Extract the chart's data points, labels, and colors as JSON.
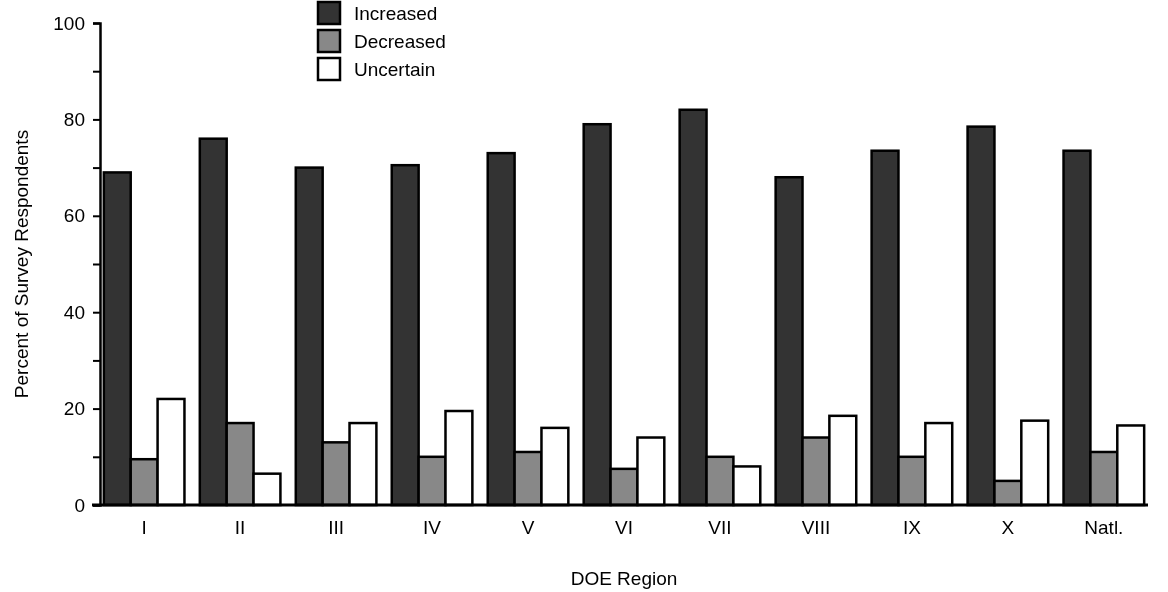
{
  "chart_data": {
    "type": "bar",
    "xlabel": "DOE Region",
    "ylabel": "Percent of Survey Respondents",
    "categories": [
      "I",
      "II",
      "III",
      "IV",
      "V",
      "VI",
      "VII",
      "VIII",
      "IX",
      "X",
      "Natl."
    ],
    "series": [
      {
        "name": "Increased",
        "color": "#333333",
        "values": [
          69,
          76,
          70,
          70.5,
          73,
          79,
          82,
          68,
          73.5,
          78.5,
          73.5
        ]
      },
      {
        "name": "Decreased",
        "color": "#888888",
        "values": [
          9.5,
          17,
          13,
          10,
          11,
          7.5,
          10,
          14,
          10,
          5,
          11
        ]
      },
      {
        "name": "Uncertain",
        "color": "#ffffff",
        "values": [
          22,
          6.5,
          17,
          19.5,
          16,
          14,
          8,
          18.5,
          17,
          17.5,
          16.5
        ]
      }
    ],
    "ylim": [
      0,
      100
    ],
    "yticks": [
      0,
      {
        "value": 10,
        "label": null
      },
      20,
      {
        "value": 30,
        "label": null
      },
      40,
      {
        "value": 50,
        "label": null
      },
      60,
      {
        "value": 70,
        "label": null
      },
      80,
      {
        "value": 90,
        "label": null
      },
      100
    ],
    "legend": "top",
    "grid": false
  }
}
